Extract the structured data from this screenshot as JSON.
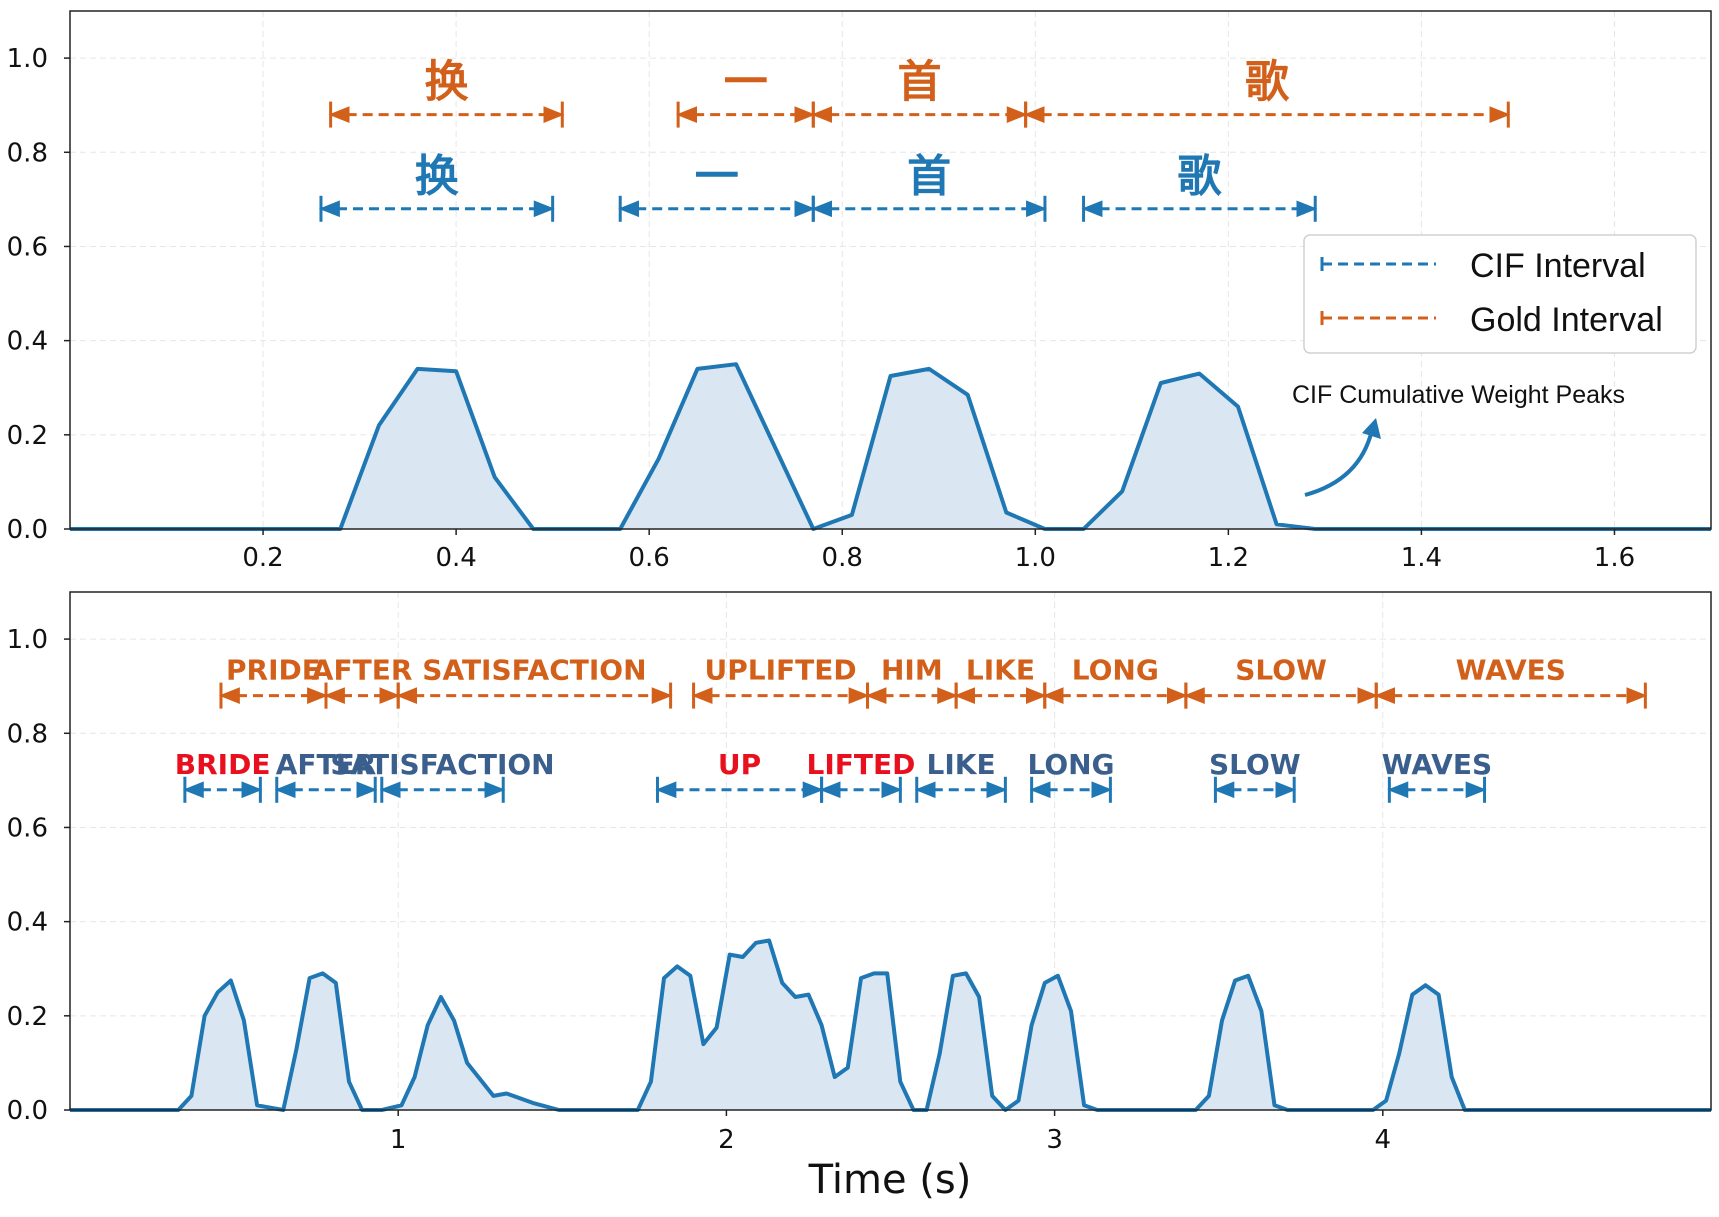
{
  "colors": {
    "cif": "#1f77b4",
    "gold": "#d2601a",
    "error": "#e8101e",
    "cif_word": "#3b5f8c",
    "fill": "#dae7f2",
    "grid": "#e6e6e6"
  },
  "chart_data": [
    {
      "type": "line",
      "id": "top",
      "xlim": [
        0,
        1.7
      ],
      "ylim": [
        0,
        1.1
      ],
      "xticks": [
        0.2,
        0.4,
        0.6,
        0.8,
        1.0,
        1.2,
        1.4,
        1.6
      ],
      "xtick_labels": [
        "0.2",
        "0.4",
        "0.6",
        "0.8",
        "1.0",
        "1.2",
        "1.4",
        "1.6"
      ],
      "yticks": [
        0.0,
        0.2,
        0.4,
        0.6,
        0.8,
        1.0
      ],
      "ytick_labels": [
        "0.0",
        "0.2",
        "0.4",
        "0.6",
        "0.8",
        "1.0"
      ],
      "series": [
        {
          "name": "CIF Cumulative Weight Peaks",
          "x": [
            0,
            0.28,
            0.32,
            0.36,
            0.4,
            0.44,
            0.48,
            0.57,
            0.61,
            0.65,
            0.69,
            0.77,
            0.81,
            0.85,
            0.89,
            0.93,
            0.97,
            1.01,
            1.05,
            1.09,
            1.13,
            1.17,
            1.21,
            1.25,
            1.29,
            1.7
          ],
          "y": [
            0,
            0,
            0.22,
            0.34,
            0.335,
            0.11,
            0,
            0,
            0.15,
            0.34,
            0.35,
            0,
            0.03,
            0.325,
            0.34,
            0.285,
            0.035,
            0,
            0,
            0.08,
            0.31,
            0.33,
            0.26,
            0.01,
            0,
            0
          ]
        }
      ],
      "intervals": [
        {
          "kind": "gold",
          "label": "换",
          "start": 0.27,
          "end": 0.51,
          "y": 0.88,
          "error": false
        },
        {
          "kind": "gold",
          "label": "一",
          "start": 0.63,
          "end": 0.77,
          "y": 0.88,
          "error": false
        },
        {
          "kind": "gold",
          "label": "首",
          "start": 0.77,
          "end": 0.99,
          "y": 0.88,
          "error": false
        },
        {
          "kind": "gold",
          "label": "歌",
          "start": 0.99,
          "end": 1.49,
          "y": 0.88,
          "error": false
        },
        {
          "kind": "cif",
          "label": "换",
          "start": 0.26,
          "end": 0.5,
          "y": 0.68,
          "error": false
        },
        {
          "kind": "cif",
          "label": "一",
          "start": 0.57,
          "end": 0.77,
          "y": 0.68,
          "error": false
        },
        {
          "kind": "cif",
          "label": "首",
          "start": 0.77,
          "end": 1.01,
          "y": 0.68,
          "error": false
        },
        {
          "kind": "cif",
          "label": "歌",
          "start": 1.05,
          "end": 1.29,
          "y": 0.68,
          "error": false
        }
      ],
      "legend": {
        "position": "upper-right",
        "entries": [
          {
            "kind": "cif",
            "label": "CIF Interval"
          },
          {
            "kind": "gold",
            "label": "Gold Interval"
          }
        ]
      },
      "annotation": {
        "text": "CIF Cumulative Weight Peaks",
        "arrow_target_x": 1.35,
        "arrow_target_y": 0.22
      }
    },
    {
      "type": "line",
      "id": "bottom",
      "xlim": [
        0,
        5.0
      ],
      "ylim": [
        0,
        1.1
      ],
      "xlabel": "Time (s)",
      "xticks": [
        1,
        2,
        3,
        4
      ],
      "xtick_labels": [
        "1",
        "2",
        "3",
        "4"
      ],
      "yticks": [
        0.0,
        0.2,
        0.4,
        0.6,
        0.8,
        1.0
      ],
      "ytick_labels": [
        "0.0",
        "0.2",
        "0.4",
        "0.6",
        "0.8",
        "1.0"
      ],
      "series": [
        {
          "name": "CIF Cumulative Weight Peaks",
          "x": [
            0,
            0.33,
            0.37,
            0.41,
            0.45,
            0.49,
            0.53,
            0.57,
            0.65,
            0.69,
            0.73,
            0.77,
            0.81,
            0.85,
            0.89,
            0.95,
            1.01,
            1.05,
            1.09,
            1.13,
            1.17,
            1.21,
            1.29,
            1.33,
            1.41,
            1.49,
            1.73,
            1.77,
            1.81,
            1.85,
            1.89,
            1.93,
            1.97,
            2.01,
            2.05,
            2.09,
            2.13,
            2.17,
            2.21,
            2.25,
            2.29,
            2.33,
            2.37,
            2.41,
            2.45,
            2.49,
            2.53,
            2.57,
            2.61,
            2.65,
            2.69,
            2.73,
            2.77,
            2.81,
            2.85,
            2.89,
            2.93,
            2.97,
            3.01,
            3.05,
            3.09,
            3.13,
            3.43,
            3.47,
            3.51,
            3.55,
            3.59,
            3.63,
            3.67,
            3.71,
            3.97,
            4.01,
            4.05,
            4.09,
            4.13,
            4.17,
            4.21,
            4.25,
            4.29,
            5.0
          ],
          "y": [
            0,
            0,
            0.03,
            0.2,
            0.25,
            0.275,
            0.19,
            0.01,
            0,
            0.13,
            0.28,
            0.29,
            0.27,
            0.06,
            0,
            0,
            0.01,
            0.07,
            0.18,
            0.24,
            0.19,
            0.1,
            0.03,
            0.035,
            0.015,
            0,
            0,
            0.06,
            0.28,
            0.305,
            0.285,
            0.14,
            0.175,
            0.33,
            0.325,
            0.355,
            0.36,
            0.27,
            0.24,
            0.245,
            0.18,
            0.07,
            0.09,
            0.28,
            0.29,
            0.29,
            0.06,
            0,
            0,
            0.12,
            0.285,
            0.29,
            0.24,
            0.03,
            0,
            0.02,
            0.18,
            0.27,
            0.285,
            0.21,
            0.01,
            0,
            0,
            0.03,
            0.19,
            0.275,
            0.285,
            0.21,
            0.01,
            0,
            0,
            0.02,
            0.12,
            0.245,
            0.265,
            0.245,
            0.07,
            0,
            0,
            0
          ]
        }
      ],
      "intervals": [
        {
          "kind": "gold",
          "label": "PRIDE",
          "start": 0.46,
          "end": 0.78,
          "y": 0.88,
          "error": false
        },
        {
          "kind": "gold",
          "label": "AFTER",
          "start": 0.78,
          "end": 1.0,
          "y": 0.88,
          "error": false
        },
        {
          "kind": "gold",
          "label": "SATISFACTION",
          "start": 1.0,
          "end": 1.83,
          "y": 0.88,
          "error": false
        },
        {
          "kind": "gold",
          "label": "UPLIFTED",
          "start": 1.9,
          "end": 2.43,
          "y": 0.88,
          "error": false
        },
        {
          "kind": "gold",
          "label": "HIM",
          "start": 2.43,
          "end": 2.7,
          "y": 0.88,
          "error": false
        },
        {
          "kind": "gold",
          "label": "LIKE",
          "start": 2.7,
          "end": 2.97,
          "y": 0.88,
          "error": false
        },
        {
          "kind": "gold",
          "label": "LONG",
          "start": 2.97,
          "end": 3.4,
          "y": 0.88,
          "error": false
        },
        {
          "kind": "gold",
          "label": "SLOW",
          "start": 3.4,
          "end": 3.98,
          "y": 0.88,
          "error": false
        },
        {
          "kind": "gold",
          "label": "WAVES",
          "start": 3.98,
          "end": 4.8,
          "y": 0.88,
          "error": false
        },
        {
          "kind": "cif",
          "label": "BRIDE",
          "start": 0.35,
          "end": 0.58,
          "y": 0.68,
          "error": true
        },
        {
          "kind": "cif",
          "label": "AFTER",
          "start": 0.63,
          "end": 0.93,
          "y": 0.68,
          "error": false
        },
        {
          "kind": "cif",
          "label": "SATISFACTION",
          "start": 0.95,
          "end": 1.32,
          "y": 0.68,
          "error": false
        },
        {
          "kind": "cif",
          "label": "UP",
          "start": 1.79,
          "end": 2.29,
          "y": 0.68,
          "error": true
        },
        {
          "kind": "cif",
          "label": "LIFTED",
          "start": 2.29,
          "end": 2.53,
          "y": 0.68,
          "error": true
        },
        {
          "kind": "cif",
          "label": "LIKE",
          "start": 2.58,
          "end": 2.85,
          "y": 0.68,
          "error": false
        },
        {
          "kind": "cif",
          "label": "LONG",
          "start": 2.93,
          "end": 3.17,
          "y": 0.68,
          "error": false
        },
        {
          "kind": "cif",
          "label": "SLOW",
          "start": 3.49,
          "end": 3.73,
          "y": 0.68,
          "error": false
        },
        {
          "kind": "cif",
          "label": "WAVES",
          "start": 4.02,
          "end": 4.31,
          "y": 0.68,
          "error": false
        }
      ]
    }
  ]
}
